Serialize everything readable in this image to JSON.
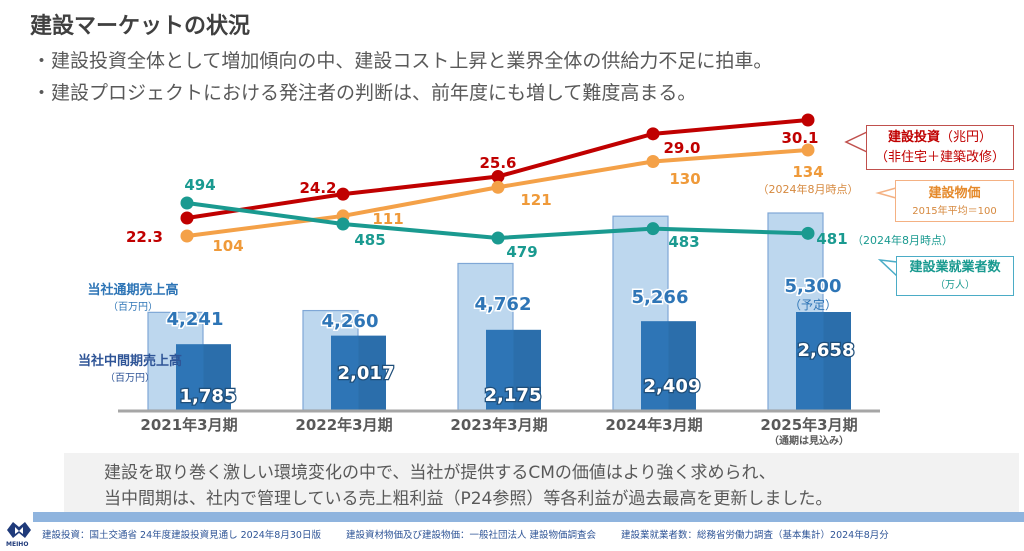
{
  "page": {
    "title": "建設マーケットの状況",
    "bullets": [
      "・建設投資全体として増加傾向の中、建設コスト上昇と業界全体の供給力不足に拍車。",
      "・建設プロジェクトにおける発注者の判断は、前年度にも増して難度高まる。"
    ]
  },
  "callouts": {
    "investment": {
      "main": "建設投資",
      "unit": "（兆円）",
      "sub": "（非住宅＋建築改修）"
    },
    "price": {
      "main": "建設物価",
      "sub": "2015年平均＝100"
    },
    "workers": {
      "main": "建設業就業者数",
      "sub": "（万人）"
    }
  },
  "side_labels": {
    "full_year": {
      "main": "当社通期売上高",
      "sub": "（百万円）"
    },
    "half_year": {
      "main": "当社中間期売上高",
      "sub": "（百万円）"
    }
  },
  "chart_data": {
    "type": "bar",
    "title": "",
    "categories": [
      "2021年3月期",
      "2022年3月期",
      "2023年3月期",
      "2024年3月期",
      "2025年3月期"
    ],
    "category_notes": [
      "",
      "",
      "",
      "",
      "（通期は見込み）"
    ],
    "ylim": [
      0,
      6000
    ],
    "series": [
      {
        "name": "当社通期売上高（百万円）",
        "kind": "bar",
        "color": "#bdd7ee",
        "border": "#7fa7d6",
        "values": [
          4241,
          4260,
          4762,
          5266,
          5300
        ],
        "labels": [
          "4,241",
          "4,260",
          "4,762",
          "5,266",
          "5,300"
        ],
        "label_notes": [
          "",
          "",
          "",
          "",
          "（予定）"
        ]
      },
      {
        "name": "当社中間期売上高（百万円）",
        "kind": "bar",
        "color": "#2e75b6",
        "values": [
          1785,
          2017,
          2175,
          2409,
          2658
        ],
        "labels": [
          "1,785",
          "2,017",
          "2,175",
          "2,409",
          "2,658"
        ]
      },
      {
        "name": "建設投資（兆円）（非住宅＋建築改修）",
        "kind": "line",
        "color": "#c00000",
        "values": [
          22.3,
          24.2,
          25.6,
          29.0,
          30.1
        ],
        "labels": [
          "22.3",
          "24.2",
          "25.6",
          "29.0",
          "30.1"
        ]
      },
      {
        "name": "建設物価（2015年平均＝100）",
        "kind": "line",
        "color": "#f4a148",
        "values": [
          104,
          111,
          121,
          130,
          134
        ],
        "labels": [
          "104",
          "111",
          "121",
          "130",
          "134"
        ],
        "last_note": "（2024年8月時点）"
      },
      {
        "name": "建設業就業者数（万人）",
        "kind": "line",
        "color": "#1a9a90",
        "values": [
          494,
          485,
          479,
          483,
          481
        ],
        "labels": [
          "494",
          "485",
          "479",
          "483",
          "481"
        ],
        "last_note": "（2024年8月時点）"
      }
    ]
  },
  "message": {
    "line1": "建設を取り巻く激しい環境変化の中で、当社が提供するCMの価値はより強く求められ、",
    "line2": "当中間期は、社内で管理している売上粗利益（P24参照）等各利益が過去最高を更新しました。"
  },
  "sources": [
    "建設投資：国土交通省 24年度建設投資見通し 2024年8月30日版",
    "建設資材物価及び建設物価：一般社団法人 建設物価調査会",
    "建設業就業者数：総務省労働力調査（基本集計）2024年8月分"
  ],
  "logo": {
    "text": "MEIHO"
  }
}
